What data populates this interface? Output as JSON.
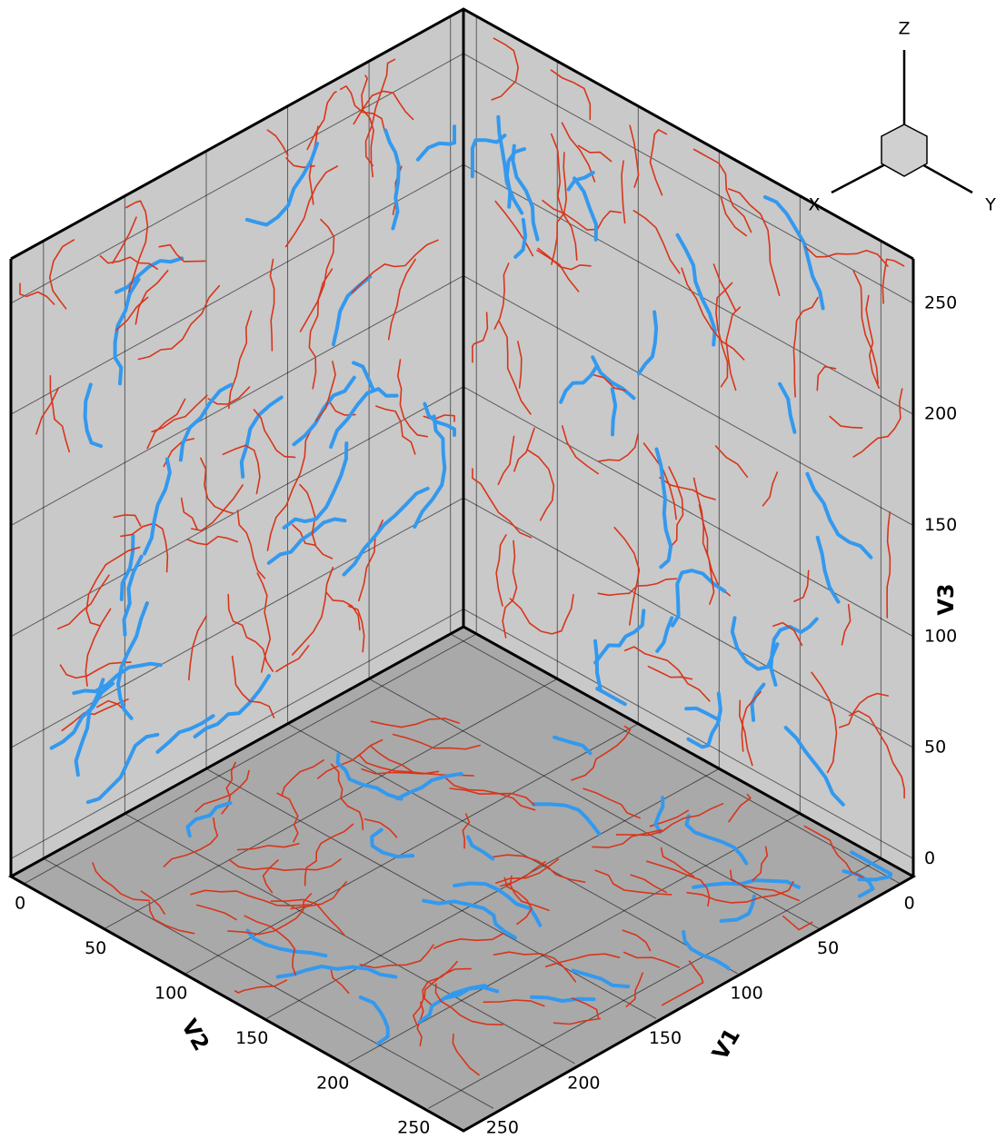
{
  "chart_data": {
    "type": "3d-box",
    "xlabel": "V1",
    "ylabel": "V2",
    "zlabel": "V3",
    "xlim": [
      -8,
      270
    ],
    "ylim": [
      -8,
      270
    ],
    "zlim": [
      -8,
      270
    ],
    "xticks": [
      0,
      50,
      100,
      150,
      200,
      250
    ],
    "yticks": [
      0,
      50,
      100,
      150,
      200,
      250
    ],
    "zticks": [
      0,
      50,
      100,
      150,
      200,
      250
    ],
    "grid": true,
    "orientation_axes": {
      "x": "X",
      "y": "Y",
      "z": "Z"
    }
  }
}
